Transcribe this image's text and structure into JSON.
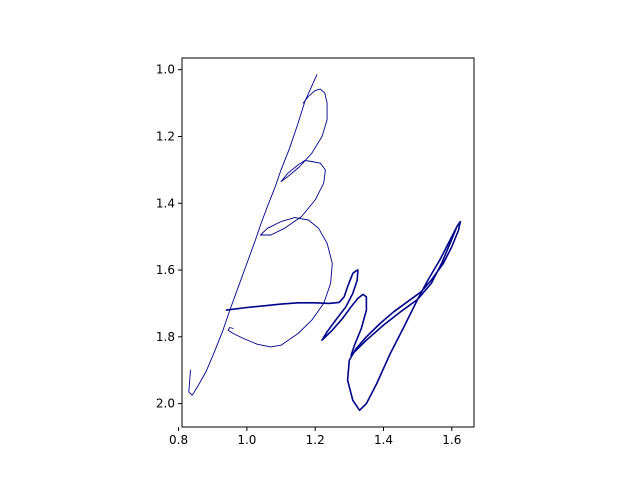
{
  "chart_data": {
    "type": "line",
    "title": "",
    "xlabel": "",
    "ylabel": "",
    "xlim": [
      0.81,
      1.665
    ],
    "ylim": [
      2.07,
      0.965
    ],
    "y_inverted": true,
    "grid": false,
    "legend": "none",
    "x_ticks": [
      "0.8",
      "1.0",
      "1.2",
      "1.4",
      "1.6"
    ],
    "y_ticks": [
      "1.0",
      "1.2",
      "1.4",
      "1.6",
      "1.8",
      "2.0"
    ],
    "colors": {
      "stroke": "#00008b",
      "axes": "#000000",
      "background": "#ffffff"
    },
    "series": [
      {
        "stroke_weight": "thin",
        "points": [
          [
            1.205,
            1.015
          ],
          [
            1.17,
            1.095
          ],
          [
            1.15,
            1.16
          ],
          [
            1.125,
            1.235
          ],
          [
            1.1,
            1.3
          ],
          [
            1.085,
            1.345
          ],
          [
            1.06,
            1.41
          ],
          [
            1.04,
            1.465
          ],
          [
            1.025,
            1.51
          ],
          [
            1.0,
            1.58
          ],
          [
            0.975,
            1.65
          ],
          [
            0.95,
            1.72
          ],
          [
            0.93,
            1.78
          ],
          [
            0.905,
            1.845
          ],
          [
            0.88,
            1.905
          ],
          [
            0.855,
            1.95
          ],
          [
            0.84,
            1.975
          ],
          [
            0.83,
            1.965
          ],
          [
            0.835,
            1.9
          ]
        ]
      },
      {
        "stroke_weight": "thin",
        "points": [
          [
            1.165,
            1.1
          ],
          [
            1.18,
            1.08
          ],
          [
            1.2,
            1.062
          ],
          [
            1.215,
            1.058
          ],
          [
            1.228,
            1.07
          ],
          [
            1.235,
            1.1
          ],
          [
            1.235,
            1.15
          ],
          [
            1.22,
            1.2
          ],
          [
            1.19,
            1.25
          ],
          [
            1.155,
            1.29
          ],
          [
            1.12,
            1.32
          ],
          [
            1.1,
            1.335
          ],
          [
            1.12,
            1.31
          ],
          [
            1.15,
            1.285
          ],
          [
            1.17,
            1.272
          ],
          [
            1.19,
            1.275
          ],
          [
            1.215,
            1.28
          ],
          [
            1.23,
            1.3
          ],
          [
            1.225,
            1.34
          ],
          [
            1.2,
            1.39
          ],
          [
            1.16,
            1.44
          ],
          [
            1.11,
            1.475
          ],
          [
            1.07,
            1.495
          ],
          [
            1.04,
            1.495
          ],
          [
            1.06,
            1.475
          ],
          [
            1.1,
            1.455
          ],
          [
            1.14,
            1.443
          ],
          [
            1.18,
            1.45
          ],
          [
            1.21,
            1.475
          ],
          [
            1.235,
            1.52
          ],
          [
            1.25,
            1.58
          ],
          [
            1.245,
            1.64
          ],
          [
            1.225,
            1.7
          ],
          [
            1.19,
            1.75
          ],
          [
            1.15,
            1.79
          ],
          [
            1.1,
            1.825
          ],
          [
            1.07,
            1.83
          ],
          [
            1.03,
            1.822
          ],
          [
            0.99,
            1.805
          ],
          [
            0.96,
            1.79
          ],
          [
            0.945,
            1.78
          ],
          [
            0.95,
            1.772
          ],
          [
            0.96,
            1.775
          ]
        ]
      },
      {
        "stroke_weight": "thick",
        "points": [
          [
            0.94,
            1.72
          ],
          [
            1.0,
            1.712
          ],
          [
            1.05,
            1.707
          ],
          [
            1.1,
            1.702
          ],
          [
            1.15,
            1.698
          ],
          [
            1.2,
            1.698
          ],
          [
            1.24,
            1.7
          ],
          [
            1.27,
            1.697
          ],
          [
            1.285,
            1.68
          ],
          [
            1.295,
            1.65
          ],
          [
            1.31,
            1.61
          ],
          [
            1.32,
            1.602
          ],
          [
            1.325,
            1.6
          ],
          [
            1.323,
            1.63
          ],
          [
            1.31,
            1.67
          ],
          [
            1.29,
            1.71
          ],
          [
            1.26,
            1.75
          ],
          [
            1.235,
            1.785
          ],
          [
            1.22,
            1.81
          ],
          [
            1.25,
            1.78
          ],
          [
            1.28,
            1.745
          ],
          [
            1.305,
            1.71
          ],
          [
            1.325,
            1.685
          ],
          [
            1.34,
            1.673
          ],
          [
            1.35,
            1.68
          ],
          [
            1.35,
            1.72
          ],
          [
            1.335,
            1.775
          ],
          [
            1.315,
            1.825
          ],
          [
            1.305,
            1.855
          ],
          [
            1.32,
            1.84
          ],
          [
            1.35,
            1.81
          ],
          [
            1.4,
            1.765
          ],
          [
            1.45,
            1.725
          ],
          [
            1.5,
            1.688
          ],
          [
            1.54,
            1.64
          ],
          [
            1.57,
            1.58
          ],
          [
            1.595,
            1.52
          ],
          [
            1.615,
            1.47
          ],
          [
            1.625,
            1.455
          ],
          [
            1.62,
            1.48
          ],
          [
            1.6,
            1.53
          ],
          [
            1.575,
            1.58
          ],
          [
            1.54,
            1.63
          ],
          [
            1.51,
            1.665
          ],
          [
            1.47,
            1.695
          ],
          [
            1.43,
            1.725
          ],
          [
            1.39,
            1.76
          ],
          [
            1.35,
            1.8
          ],
          [
            1.32,
            1.835
          ],
          [
            1.3,
            1.87
          ],
          [
            1.295,
            1.93
          ],
          [
            1.31,
            1.99
          ],
          [
            1.33,
            2.02
          ],
          [
            1.35,
            2.0
          ],
          [
            1.38,
            1.94
          ],
          [
            1.42,
            1.85
          ],
          [
            1.46,
            1.77
          ],
          [
            1.5,
            1.688
          ],
          [
            1.53,
            1.63
          ],
          [
            1.565,
            1.57
          ],
          [
            1.595,
            1.51
          ],
          [
            1.615,
            1.47
          ],
          [
            1.625,
            1.455
          ]
        ]
      }
    ]
  }
}
